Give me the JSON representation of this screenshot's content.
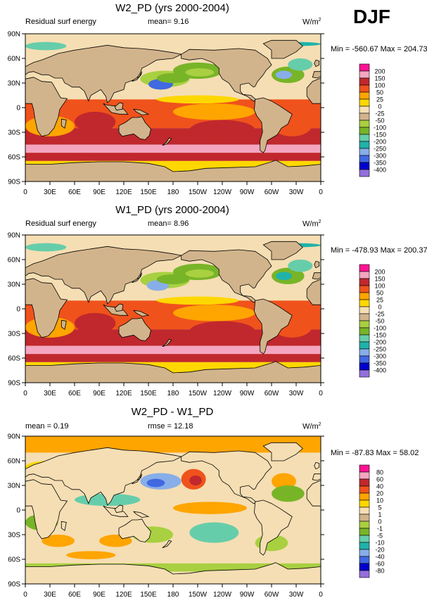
{
  "season": "DJF",
  "x_ticks": [
    "0",
    "30E",
    "60E",
    "90E",
    "120E",
    "150E",
    "180",
    "150W",
    "120W",
    "90W",
    "60W",
    "30W",
    "0"
  ],
  "y_ticks": [
    "90N",
    "60N",
    "30N",
    "0",
    "30S",
    "60S",
    "90S"
  ],
  "panels": [
    {
      "title": "W2_PD (yrs 2000-2004)",
      "left_text": "Residual surf energy",
      "mean_text": "mean=  9.16",
      "units": "W/m",
      "units_sup": "2",
      "minmax": "Min = -560.67 Max = 204.73",
      "levels": [
        "200",
        "150",
        "100",
        "50",
        "25",
        "0",
        "-25",
        "-50",
        "-100",
        "-150",
        "-200",
        "-250",
        "-300",
        "-350",
        "-400"
      ]
    },
    {
      "title": "W1_PD (yrs 2000-2004)",
      "left_text": "Residual surf energy",
      "mean_text": "mean=  8.96",
      "units": "W/m",
      "units_sup": "2",
      "minmax": "Min = -478.93 Max = 200.37",
      "levels": [
        "200",
        "150",
        "100",
        "50",
        "25",
        "0",
        "-25",
        "-50",
        "-100",
        "-150",
        "-200",
        "-250",
        "-300",
        "-350",
        "-400"
      ]
    },
    {
      "title": "W2_PD - W1_PD",
      "left_text": "mean =  0.19",
      "mean_text": "rmse =  12.18",
      "units": "W/m",
      "units_sup": "2",
      "minmax": "Min = -87.83 Max =  58.02",
      "levels": [
        "80",
        "60",
        "40",
        "20",
        "10",
        "5",
        "1",
        "0",
        "-1",
        "-5",
        "-10",
        "-20",
        "-40",
        "-60",
        "-80"
      ]
    }
  ],
  "colors": {
    "scale": [
      "#ff1493",
      "#f4a6c0",
      "#c0282d",
      "#f0521c",
      "#ffa500",
      "#ffd700",
      "#f5deb3",
      "#d2b48c",
      "#a8d040",
      "#78b428",
      "#66cdaa",
      "#20b2aa",
      "#87aee8",
      "#4169e1",
      "#0000cd",
      "#9370db"
    ],
    "land": "#d2b48c"
  }
}
